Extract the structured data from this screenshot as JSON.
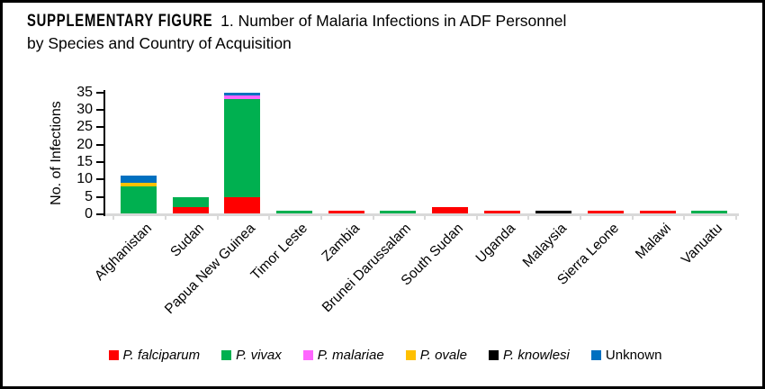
{
  "figure": {
    "heading_bold": "SUPPLEMENTARY FIGURE",
    "heading_rest": "1.  Number of Malaria Infections in ADF Personnel",
    "heading_line2": "by Species and Country of Acquisition"
  },
  "chart_data": {
    "type": "bar",
    "stacked": true,
    "title": "Number of Malaria Infections in ADF Personnel by Species and Country of Acquisition",
    "xlabel": "",
    "ylabel": "No. of Infections",
    "ylim": [
      0,
      35
    ],
    "yticks": [
      0,
      5,
      10,
      15,
      20,
      25,
      30,
      35
    ],
    "grid": false,
    "legend_position": "bottom",
    "categories": [
      "Afghanistan",
      "Sudan",
      "Papua New Guinea",
      "Timor Leste",
      "Zambia",
      "Brunei Darussalam",
      "South Sudan",
      "Uganda",
      "Malaysia",
      "Sierra Leone",
      "Malawi",
      "Vanuatu"
    ],
    "series": [
      {
        "name": "P. falciparum",
        "color": "#FF0000",
        "italic": true,
        "values": [
          0,
          2,
          5,
          0,
          1,
          0,
          2,
          1,
          0,
          1,
          1,
          0
        ]
      },
      {
        "name": "P. vivax",
        "color": "#00B050",
        "italic": true,
        "values": [
          8,
          3,
          28,
          1,
          0,
          1,
          0,
          0,
          0,
          0,
          0,
          1
        ]
      },
      {
        "name": "P. malariae",
        "color": "#FF66FF",
        "italic": true,
        "values": [
          0,
          0,
          1,
          0,
          0,
          0,
          0,
          0,
          0,
          0,
          0,
          0
        ]
      },
      {
        "name": "P. ovale",
        "color": "#FFC000",
        "italic": true,
        "values": [
          1,
          0,
          0,
          0,
          0,
          0,
          0,
          0,
          0,
          0,
          0,
          0
        ]
      },
      {
        "name": "P. knowlesi",
        "color": "#000000",
        "italic": true,
        "values": [
          0,
          0,
          0,
          0,
          0,
          0,
          0,
          0,
          1,
          0,
          0,
          0
        ]
      },
      {
        "name": "Unknown",
        "color": "#0070C0",
        "italic": false,
        "values": [
          2,
          0,
          1,
          0,
          0,
          0,
          0,
          0,
          0,
          0,
          0,
          0
        ]
      }
    ],
    "totals": {
      "Afghanistan": 11,
      "Sudan": 5,
      "Papua New Guinea": 35,
      "Timor Leste": 1,
      "Zambia": 1,
      "Brunei Darussalam": 1,
      "South Sudan": 2,
      "Uganda": 1,
      "Malaysia": 1,
      "Sierra Leone": 1,
      "Malawi": 1,
      "Vanuatu": 1
    }
  }
}
